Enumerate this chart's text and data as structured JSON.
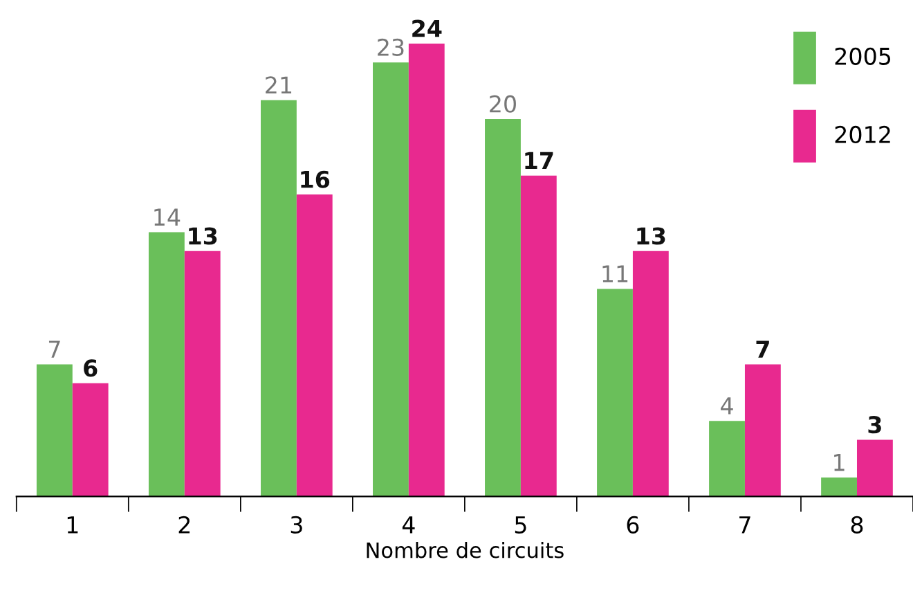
{
  "chart_data": {
    "type": "bar",
    "xlabel": "Nombre de circuits",
    "categories": [
      "1",
      "2",
      "3",
      "4",
      "5",
      "6",
      "7",
      "8"
    ],
    "series": [
      {
        "name": "2005",
        "color": "#6abf5a",
        "values": [
          7,
          14,
          21,
          23,
          20,
          11,
          4,
          1
        ]
      },
      {
        "name": "2012",
        "color": "#e8298f",
        "values": [
          6,
          13,
          16,
          24,
          17,
          13,
          7,
          3
        ]
      }
    ],
    "data_labels": true,
    "legend": "top right",
    "tick_labels": "x",
    "grid": false
  }
}
